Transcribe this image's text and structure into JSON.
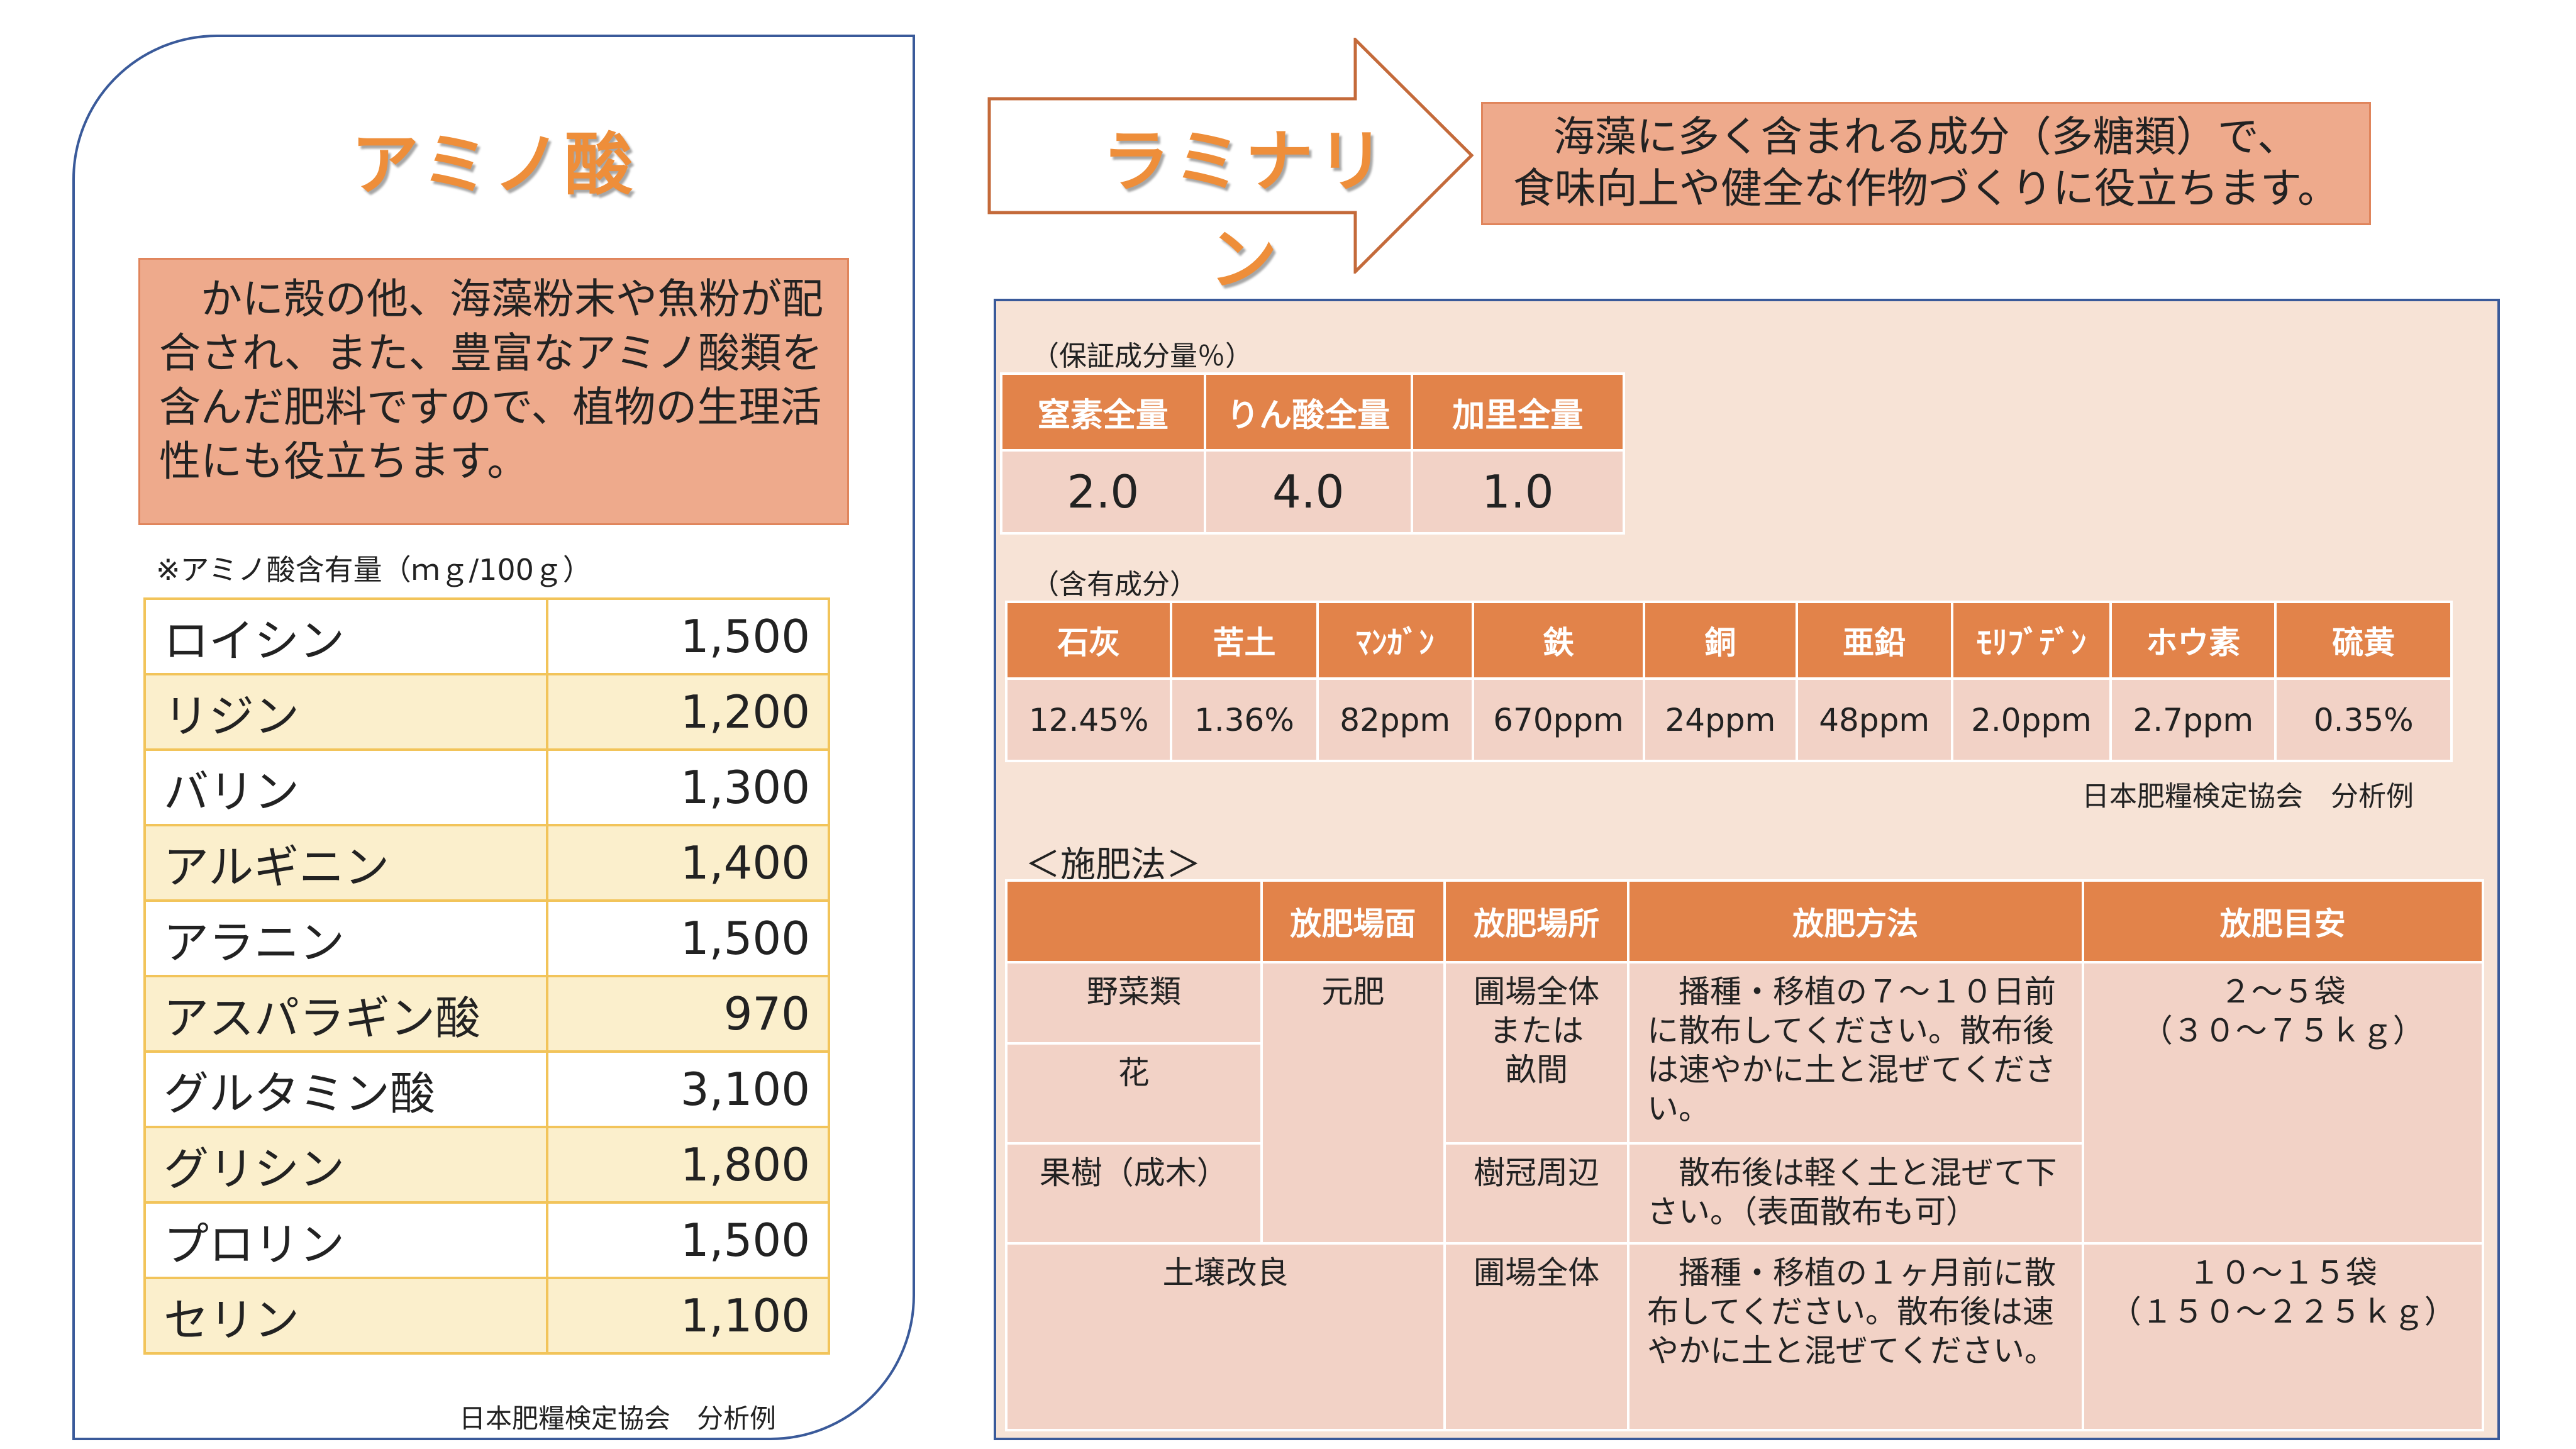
{
  "amino": {
    "title": "アミノ酸",
    "description": "　かに殻の他、海藻粉末や魚粉が配合され、また、豊富なアミノ酸類を含んだ肥料ですので、植物の生理活性にも役立ちます。",
    "unit_note": "※アミノ酸含有量（ｍｇ/100ｇ）",
    "rows": [
      {
        "name": "ロイシン",
        "value": "1,500"
      },
      {
        "name": "リジン",
        "value": "1,200"
      },
      {
        "name": "バリン",
        "value": "1,300"
      },
      {
        "name": "アルギニン",
        "value": "1,400"
      },
      {
        "name": "アラニン",
        "value": "1,500"
      },
      {
        "name": "アスパラギン酸",
        "value": "970"
      },
      {
        "name": "グルタミン酸",
        "value": "3,100"
      },
      {
        "name": "グリシン",
        "value": "1,800"
      },
      {
        "name": "プロリン",
        "value": "1,500"
      },
      {
        "name": "セリン",
        "value": "1,100"
      }
    ],
    "source": "日本肥糧検定協会　分析例"
  },
  "laminarin": {
    "title": "ラミナリン",
    "desc_line1": "海藻に多く含まれる成分（多糖類）で、",
    "desc_line2": "食味向上や健全な作物づくりに役立ちます。"
  },
  "guarantee": {
    "label": "（保証成分量％）",
    "headers": [
      "窒素全量",
      "りん酸全量",
      "加里全量"
    ],
    "values": [
      "2.0",
      "4.0",
      "1.0"
    ]
  },
  "contents": {
    "label": "（含有成分）",
    "headers": [
      "石灰",
      "苦土",
      "ﾏﾝｶﾞﾝ",
      "鉄",
      "銅",
      "亜鉛",
      "ﾓﾘﾌﾞﾃﾞﾝ",
      "ホウ素",
      "硫黄"
    ],
    "values": [
      "12.45%",
      "1.36%",
      "82ppm",
      "670ppm",
      "24ppm",
      "48ppm",
      "2.0ppm",
      "2.7ppm",
      "0.35%"
    ],
    "source": "日本肥糧検定協会　分析例"
  },
  "method": {
    "label": "＜施肥法＞",
    "headers": [
      "",
      "放肥場面",
      "放肥場所",
      "放肥方法",
      "放肥目安"
    ],
    "crop_vegetables": "野菜類",
    "crop_flowers": "花",
    "crop_fruit": "果樹（成木）",
    "crop_soil": "土壌改良",
    "scene_basal": "元肥",
    "place_field_line1": "圃場全体",
    "place_field_line2": "または",
    "place_field_line3": "畝間",
    "place_tree": "樹冠周辺",
    "place_field2": "圃場全体",
    "method_1": "　播種・移植の７～１０日前に散布してください。散布後は速やかに土と混ぜてください。",
    "method_2": "　散布後は軽く土と混ぜて下さい。（表面散布も可）",
    "method_3": "　播種・移植の１ヶ月前に散布してください。散布後は速やかに土と混ぜてください。",
    "amount_1_line1": "２～５袋",
    "amount_1_line2": "（３０～７５ｋｇ）",
    "amount_2_line1": "１０～１５袋",
    "amount_2_line2": "（１５０～２２５ｋｇ）"
  }
}
